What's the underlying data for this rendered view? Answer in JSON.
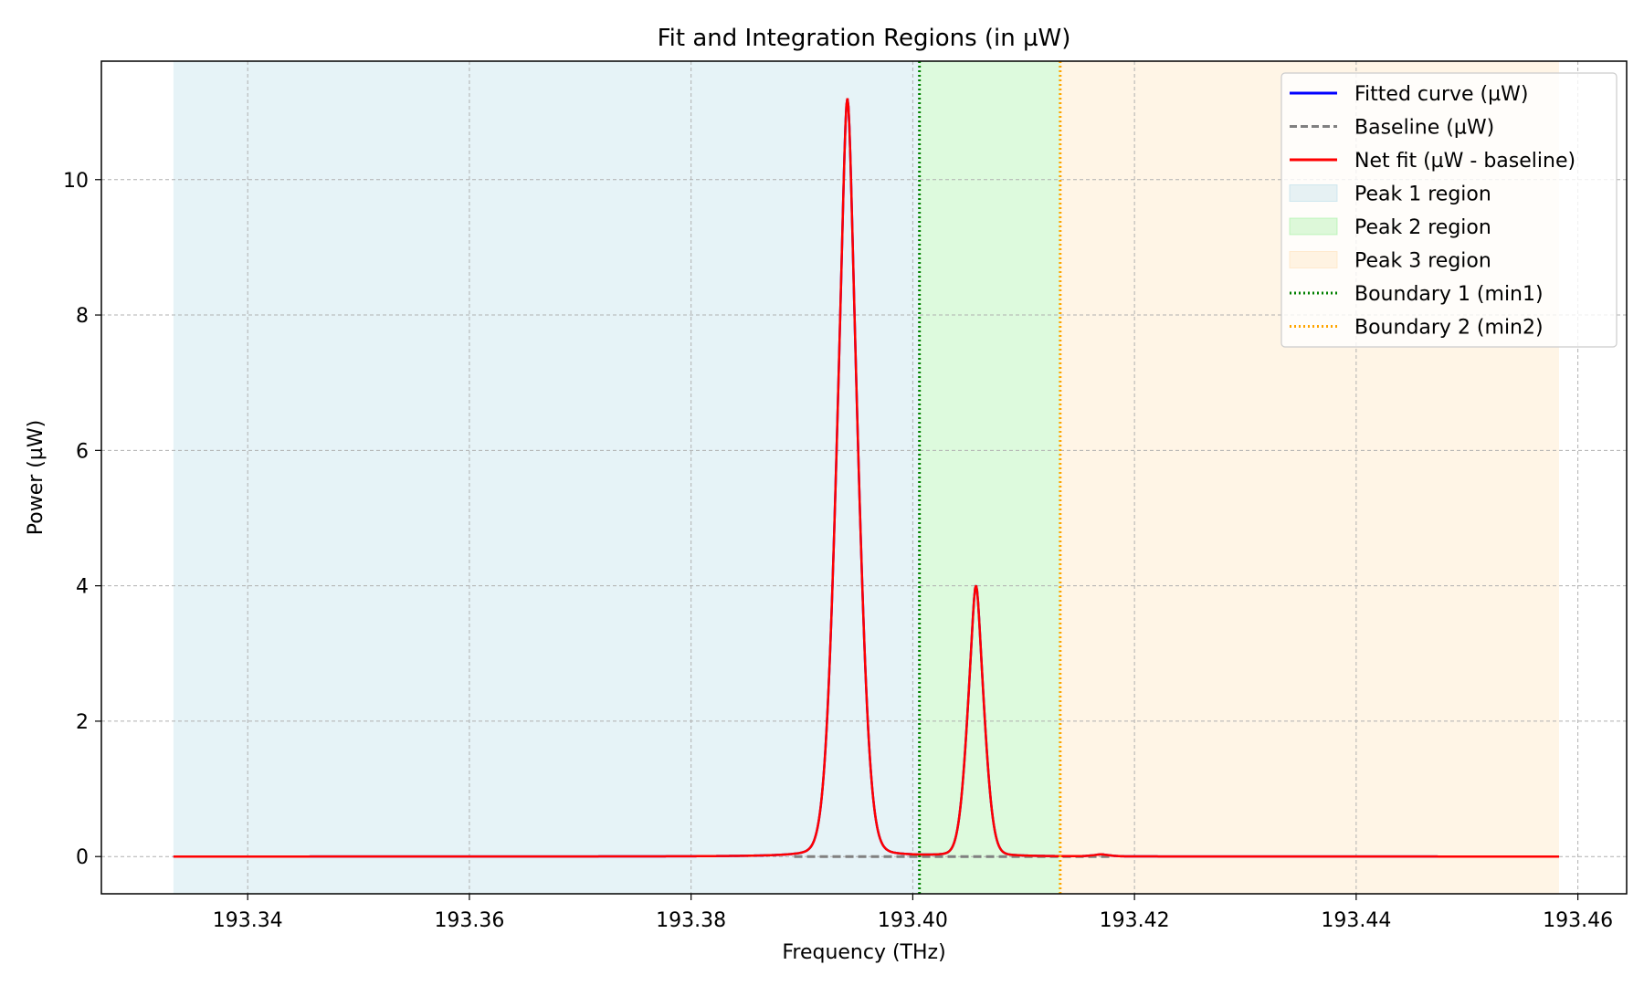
{
  "chart_data": {
    "type": "line",
    "title": "Fit and Integration Regions (in µW)",
    "xlabel": "Frequency (THz)",
    "ylabel": "Power (µW)",
    "xlim": [
      193.3268,
      193.4644
    ],
    "ylim": [
      -0.55,
      11.75
    ],
    "grid": true,
    "grid_style": "dashed",
    "legend_position": "top-right",
    "x_ticks": [
      193.34,
      193.36,
      193.38,
      193.4,
      193.42,
      193.44,
      193.46
    ],
    "x_tick_labels": [
      "193.34",
      "193.36",
      "193.38",
      "193.40",
      "193.42",
      "193.44",
      "193.46"
    ],
    "y_ticks": [
      0,
      2,
      4,
      6,
      8,
      10
    ],
    "y_tick_labels": [
      "0",
      "2",
      "4",
      "6",
      "8",
      "10"
    ],
    "x_range": [
      193.3333,
      193.4583
    ],
    "regions": [
      {
        "name": "Peak 1 region",
        "x0": 193.3333,
        "x1": 193.4006,
        "color": "#add8e6",
        "opacity": 0.3
      },
      {
        "name": "Peak 2 region",
        "x0": 193.4006,
        "x1": 193.4133,
        "color": "#90ee90",
        "opacity": 0.3
      },
      {
        "name": "Peak 3 region",
        "x0": 193.4133,
        "x1": 193.4583,
        "color": "#ffdead",
        "opacity": 0.3
      }
    ],
    "boundaries": [
      {
        "name": "Boundary 1 (min1)",
        "x": 193.4006,
        "color": "#008000"
      },
      {
        "name": "Boundary 2 (min2)",
        "x": 193.4133,
        "color": "#ffa500"
      }
    ],
    "peaks": [
      {
        "center": 193.3941,
        "amplitude": 11.2,
        "sigma": 0.00105,
        "gamma": 0.00055
      },
      {
        "center": 193.4057,
        "amplitude": 4.0,
        "sigma": 0.0008,
        "gamma": 0.00045
      },
      {
        "center": 193.417,
        "amplitude": 0.03,
        "sigma": 0.0008,
        "gamma": 0.0003
      }
    ],
    "baseline": {
      "x0": 193.3893,
      "x1": 193.418,
      "value": 0.0
    },
    "series": [
      {
        "name": "Fitted curve (µW)",
        "color": "#0000ff",
        "style": "solid"
      },
      {
        "name": "Baseline (µW)",
        "color": "#808080",
        "style": "dashed"
      },
      {
        "name": "Net fit (µW - baseline)",
        "color": "#ff0000",
        "style": "solid"
      }
    ],
    "legend": [
      {
        "label": "Fitted curve (µW)",
        "kind": "line",
        "color": "#0000ff",
        "dash": ""
      },
      {
        "label": "Baseline (µW)",
        "kind": "line",
        "color": "#808080",
        "dash": "8,4"
      },
      {
        "label": "Net fit (µW - baseline)",
        "kind": "line",
        "color": "#ff0000",
        "dash": ""
      },
      {
        "label": "Peak 1 region",
        "kind": "patch",
        "color": "#add8e6",
        "dash": ""
      },
      {
        "label": "Peak 2 region",
        "kind": "patch",
        "color": "#90ee90",
        "dash": ""
      },
      {
        "label": "Peak 3 region",
        "kind": "patch",
        "color": "#ffdead",
        "dash": ""
      },
      {
        "label": "Boundary 1 (min1)",
        "kind": "line",
        "color": "#008000",
        "dash": "2,3"
      },
      {
        "label": "Boundary 2 (min2)",
        "kind": "line",
        "color": "#ffa500",
        "dash": "2,3"
      }
    ]
  }
}
